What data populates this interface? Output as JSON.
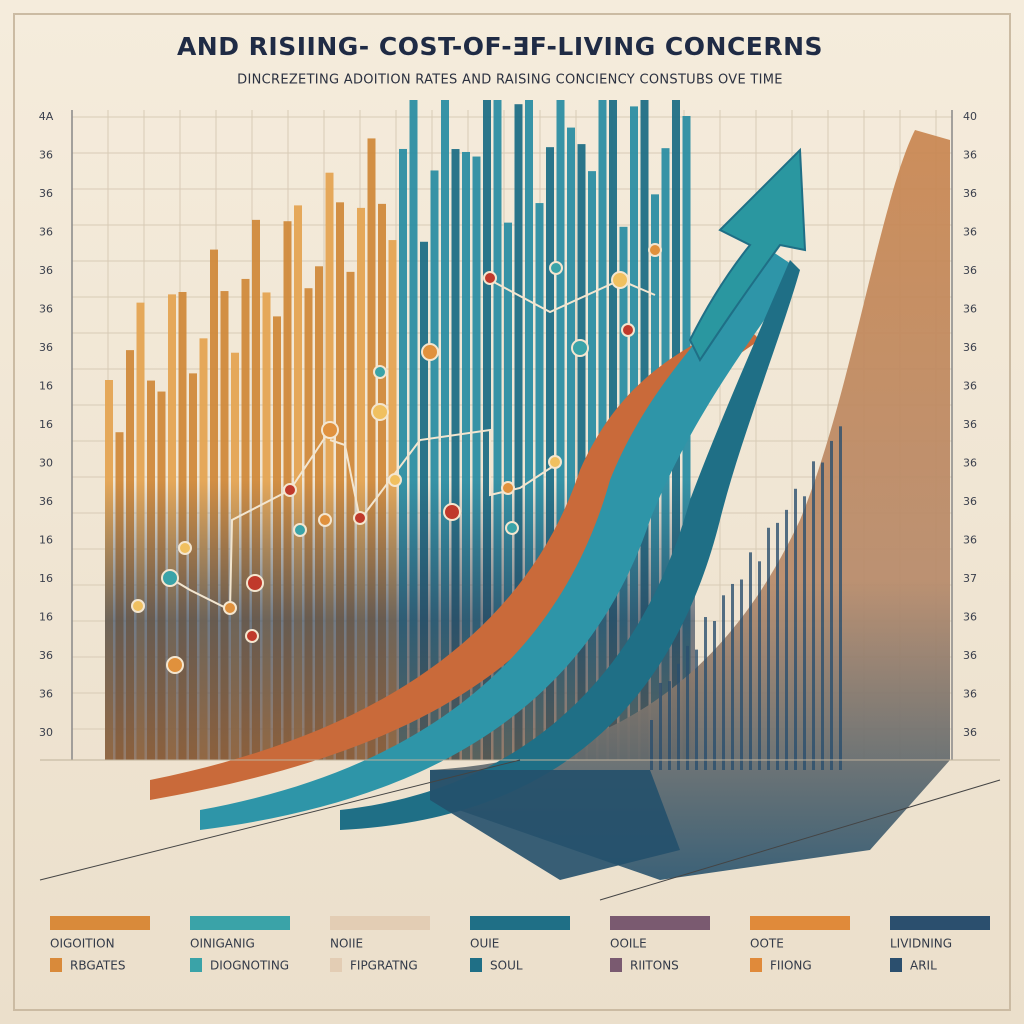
{
  "title": "AND RISIING- COST-OF-ƎF-LIVING CONCERNS",
  "subtitle": "DINCREZETING ADOITION RATES AND RAISING CONCIENCY CONSTUBS OVE TIME",
  "left_axis": [
    "4A",
    "36",
    "36",
    "36",
    "36",
    "36",
    "36",
    "16",
    "16",
    "30",
    "36",
    "16",
    "16",
    "16",
    "36",
    "36",
    "30"
  ],
  "right_axis": [
    "40",
    "36",
    "36",
    "36",
    "36",
    "36",
    "36",
    "36",
    "36",
    "36",
    "36",
    "36",
    "37",
    "36",
    "36",
    "36",
    "36"
  ],
  "legend": [
    {
      "label": "OIGOITION",
      "item": "RBGATES",
      "color": "#d98a3a"
    },
    {
      "label": "OINIGANIG",
      "item": "DIOGNOTING",
      "color": "#3aa3a8"
    },
    {
      "label": "NOIIE",
      "item": "FIPGRATNG",
      "color": "#e3cdb4"
    },
    {
      "label": "OUIE",
      "item": "SOUL",
      "color": "#1f6f86"
    },
    {
      "label": "OOILE",
      "item": "RIITONS",
      "color": "#7a5a70"
    },
    {
      "label": "OOTE",
      "item": "FIIONG",
      "color": "#e08a3a"
    },
    {
      "label": "LIVIDNING",
      "item": "ARIL",
      "color": "#2b4f6e"
    }
  ]
}
